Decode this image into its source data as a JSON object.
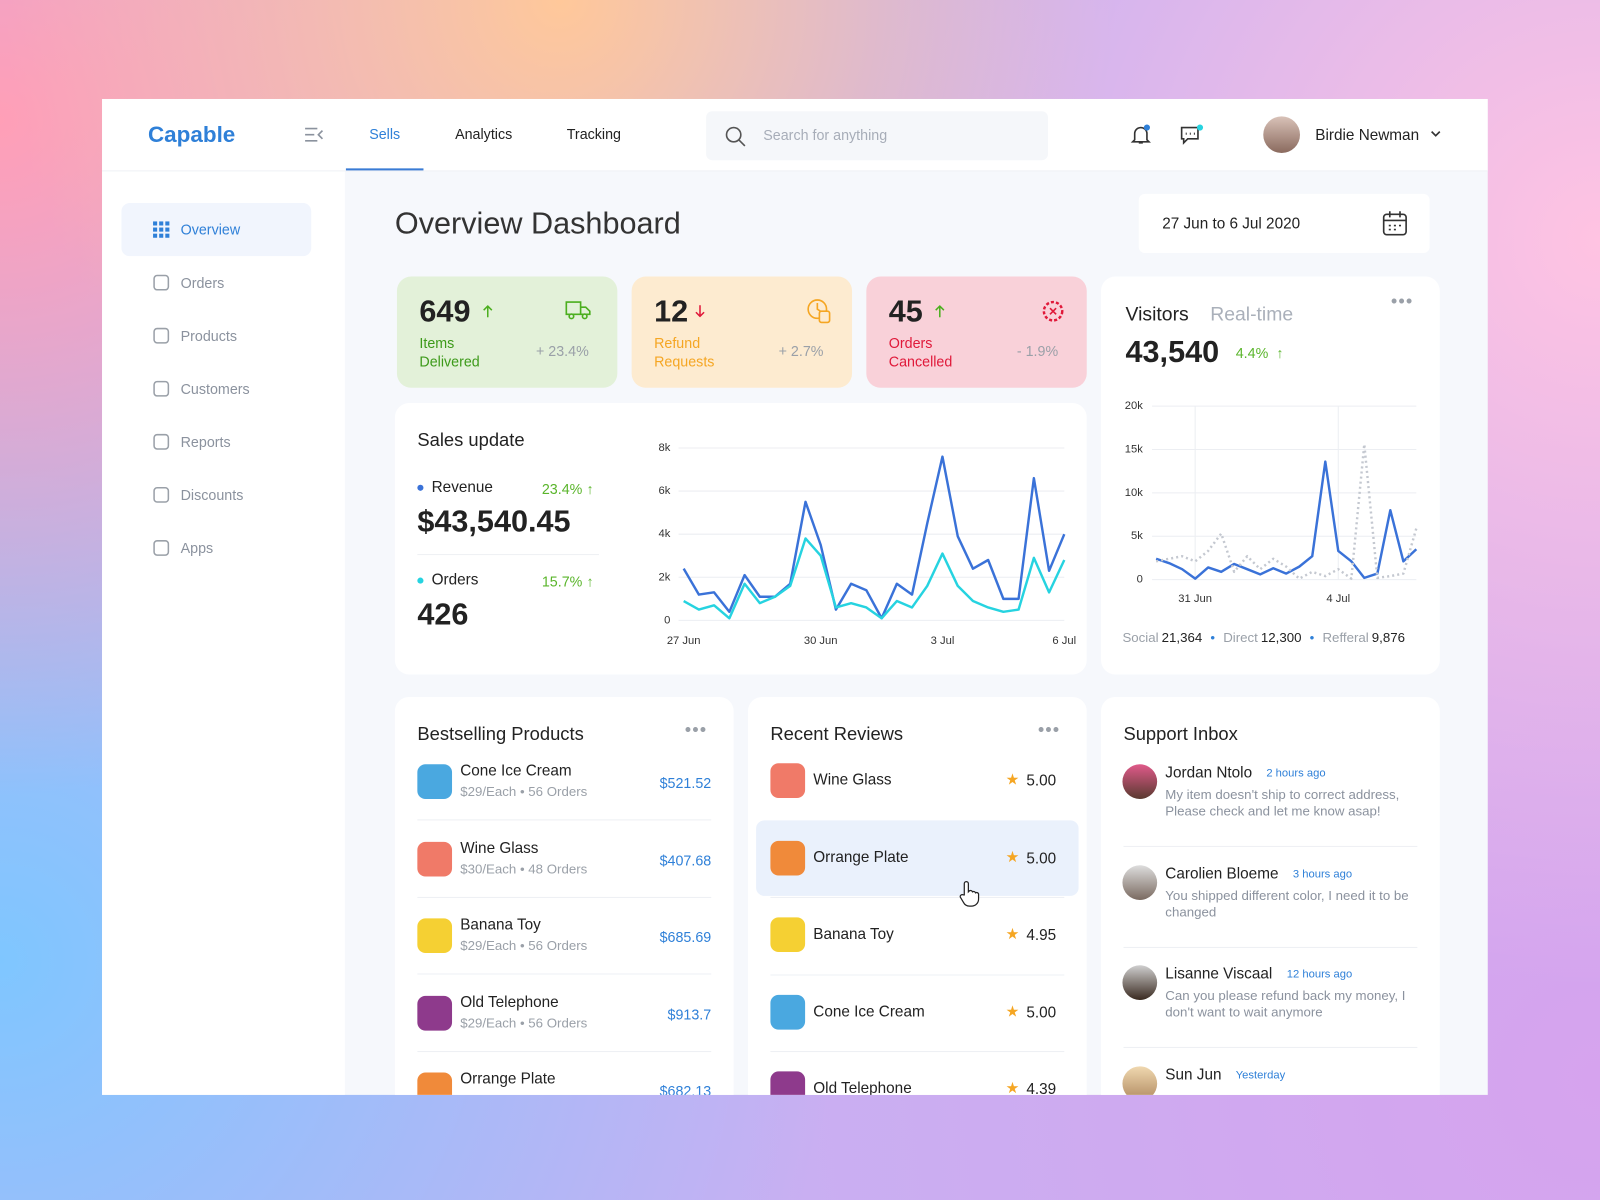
{
  "brand": "Capable",
  "tabs": [
    "Sells",
    "Analytics",
    "Tracking"
  ],
  "search_placeholder": "Search for anything",
  "user_name": "Birdie Newman",
  "sidebar": [
    "Overview",
    "Orders",
    "Products",
    "Customers",
    "Reports",
    "Discounts",
    "Apps"
  ],
  "title": "Overview Dashboard",
  "date_range": "27 Jun to 6 Jul 2020",
  "stats": [
    {
      "value": 649,
      "label": "Items Delivered",
      "change": "+ 23.4%"
    },
    {
      "value": 12,
      "label": "Refund Requests",
      "change": "+ 2.7%"
    },
    {
      "value": 45,
      "label": "Orders Cancelled",
      "change": "- 1.9%"
    }
  ],
  "sales_summary": [
    {
      "change": "23.4%",
      "total": "$43,540.45"
    },
    {
      "change": "15.7%",
      "total": "426"
    }
  ],
  "sales_chart": {
    "type": "line",
    "title": "Sales update",
    "categories": [
      "27 Jun",
      null,
      null,
      null,
      null,
      null,
      null,
      null,
      null,
      "30 Jun",
      null,
      null,
      null,
      null,
      null,
      null,
      null,
      "3 Jul",
      null,
      null,
      null,
      null,
      null,
      null,
      null,
      "6 Jul"
    ],
    "series": [
      {
        "name": "Revenue",
        "color": "#3a72d8",
        "values": [
          2400,
          1200,
          1300,
          400,
          2100,
          1100,
          1100,
          1700,
          5500,
          3500,
          500,
          1700,
          1400,
          100,
          1700,
          1200,
          4500,
          7600,
          3900,
          2400,
          2800,
          1000,
          1000,
          6600,
          2300,
          4000
        ]
      },
      {
        "name": "Orders",
        "color": "#26d3e0",
        "values": [
          900,
          500,
          700,
          100,
          1700,
          800,
          1100,
          1600,
          3800,
          3000,
          600,
          800,
          600,
          100,
          900,
          600,
          1600,
          3100,
          1600,
          900,
          600,
          400,
          500,
          2900,
          1300,
          2800
        ]
      }
    ],
    "ylim": [
      0,
      8000
    ],
    "yticks": [
      0,
      {
        "value": 2000,
        "label": "2k"
      },
      {
        "value": 4000,
        "label": "4k"
      },
      {
        "value": 6000,
        "label": "6k"
      },
      {
        "value": 8000,
        "label": "8k"
      }
    ],
    "grid": true
  },
  "visitors": {
    "tabs": [
      "Visitors",
      "Real-time"
    ],
    "total": "43,540",
    "change": "4.4%",
    "sources": [
      {
        "label": "Social",
        "value": "21,364"
      },
      {
        "label": "Direct",
        "value": "12,300"
      },
      {
        "label": "Refferal",
        "value": "9,876"
      }
    ]
  },
  "visitors_chart": {
    "type": "line",
    "categories": [
      null,
      null,
      null,
      "31 Jun",
      null,
      null,
      null,
      null,
      null,
      null,
      null,
      null,
      null,
      null,
      "4 Jul",
      null,
      null,
      null,
      null,
      null,
      null
    ],
    "series": [
      {
        "color": "#3a72d8",
        "values": [
          2400,
          1900,
          1200,
          100,
          1400,
          900,
          1800,
          1200,
          600,
          1300,
          700,
          1500,
          2700,
          13600,
          3300,
          2100,
          200,
          700,
          8000,
          2100,
          3500
        ]
      },
      {
        "color": "#c4c8d0",
        "dashed": true,
        "values": [
          2100,
          2400,
          2700,
          2100,
          3300,
          5300,
          900,
          2700,
          1200,
          2400,
          1500,
          100,
          900,
          400,
          1200,
          100,
          15600,
          200,
          400,
          700,
          5900
        ]
      }
    ],
    "ylim": [
      0,
      20000
    ],
    "yticks": [
      0,
      {
        "value": 5000,
        "label": "5k"
      },
      {
        "value": 10000,
        "label": "10k"
      },
      {
        "value": 15000,
        "label": "15k"
      },
      {
        "value": 20000,
        "label": "20k"
      }
    ],
    "grid": true
  },
  "bestselling": {
    "title": "Bestselling Products",
    "items": [
      {
        "name": "Cone Ice Cream",
        "meta": "$29/Each • 56 Orders",
        "price": "$521.52"
      },
      {
        "name": "Wine Glass",
        "meta": "$30/Each • 48 Orders",
        "price": "$407.68"
      },
      {
        "name": "Banana Toy",
        "meta": "$29/Each • 56 Orders",
        "price": "$685.69"
      },
      {
        "name": "Old Telephone",
        "meta": "$29/Each • 56 Orders",
        "price": "$913.7"
      },
      {
        "name": "Orrange Plate",
        "price": "$682.13"
      }
    ]
  },
  "reviews": {
    "title": "Recent Reviews",
    "items": [
      {
        "name": "Wine Glass",
        "rating": "5.00"
      },
      {
        "name": "Orrange Plate",
        "rating": "5.00"
      },
      {
        "name": "Banana Toy",
        "rating": "4.95"
      },
      {
        "name": "Cone Ice Cream",
        "rating": "5.00"
      },
      {
        "name": "Old Telephone",
        "rating": "4.39"
      }
    ]
  },
  "support": {
    "title": "Support Inbox",
    "items": [
      {
        "name": "Jordan Ntolo",
        "time": "2 hours ago",
        "message": "My item doesn't ship to correct address, Please check and let me know asap!"
      },
      {
        "name": "Carolien Bloeme",
        "time": "3 hours ago",
        "message": "You shipped different color, I need it to be changed"
      },
      {
        "name": "Lisanne Viscaal",
        "time": "12 hours ago",
        "message": "Can you please refund back my money, I don't want to wait anymore"
      },
      {
        "name": "Sun Jun",
        "time": "Yesterday"
      }
    ]
  }
}
